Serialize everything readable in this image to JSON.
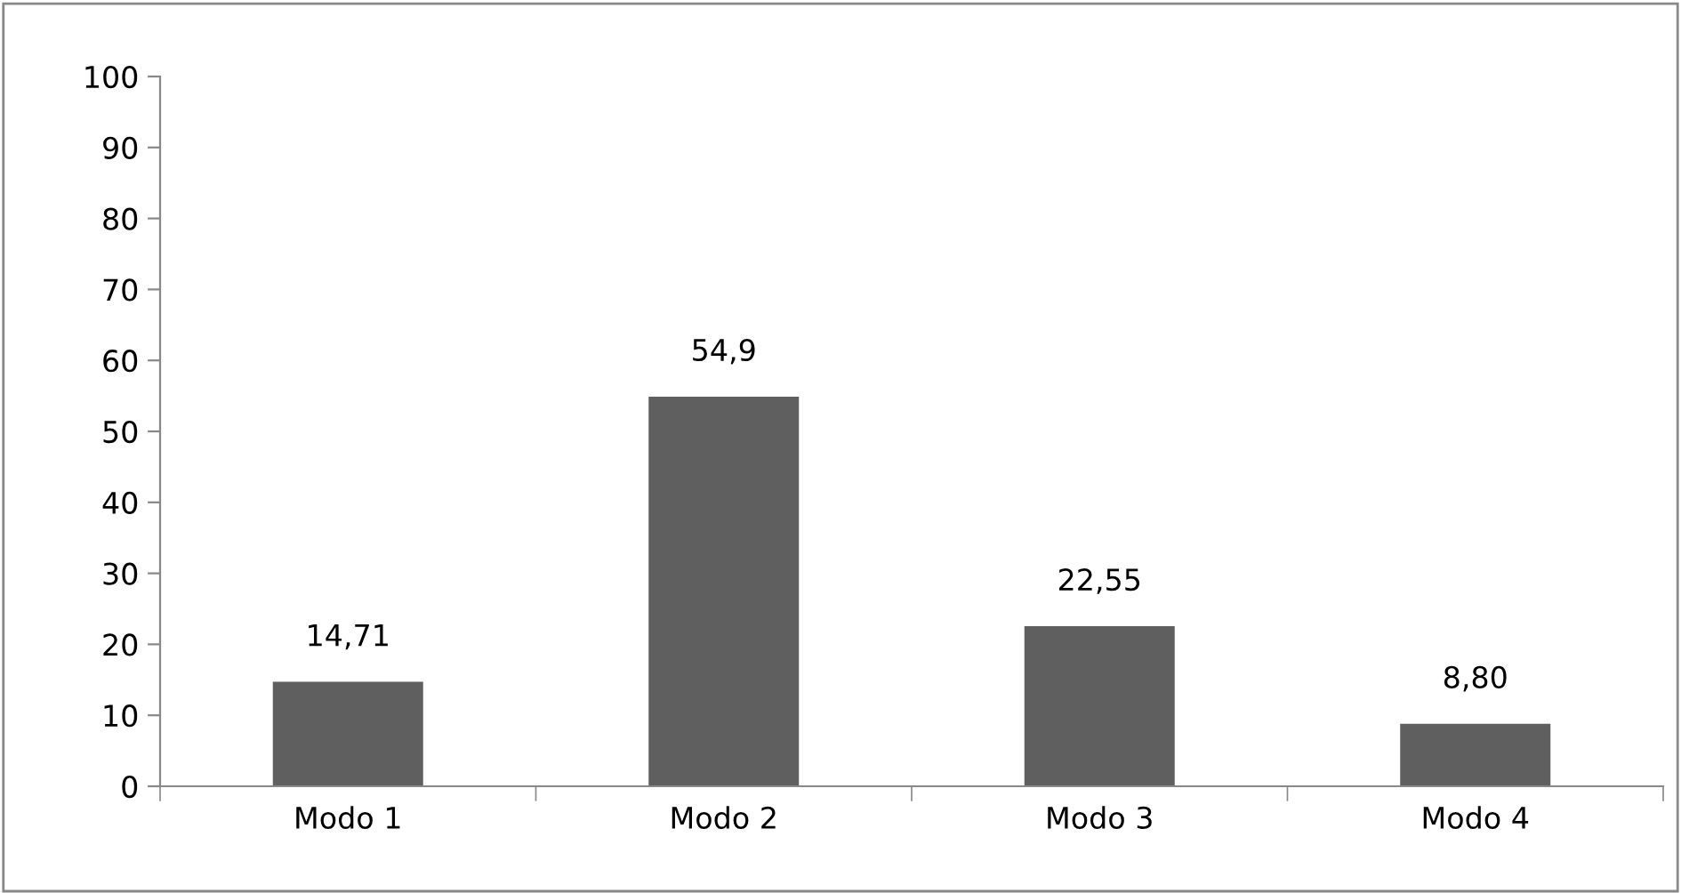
{
  "chart_data": {
    "type": "bar",
    "categories": [
      "Modo 1",
      "Modo 2",
      "Modo 3",
      "Modo 4"
    ],
    "values": [
      14.71,
      54.9,
      22.55,
      8.8
    ],
    "value_labels": [
      "14,71",
      "54,9",
      "22,55",
      "8,80"
    ],
    "color": "#5f5f5f",
    "ylim": [
      0,
      100
    ],
    "yticks": [
      0,
      10,
      20,
      30,
      40,
      50,
      60,
      70,
      80,
      90,
      100
    ],
    "grid": false,
    "legend": false
  }
}
